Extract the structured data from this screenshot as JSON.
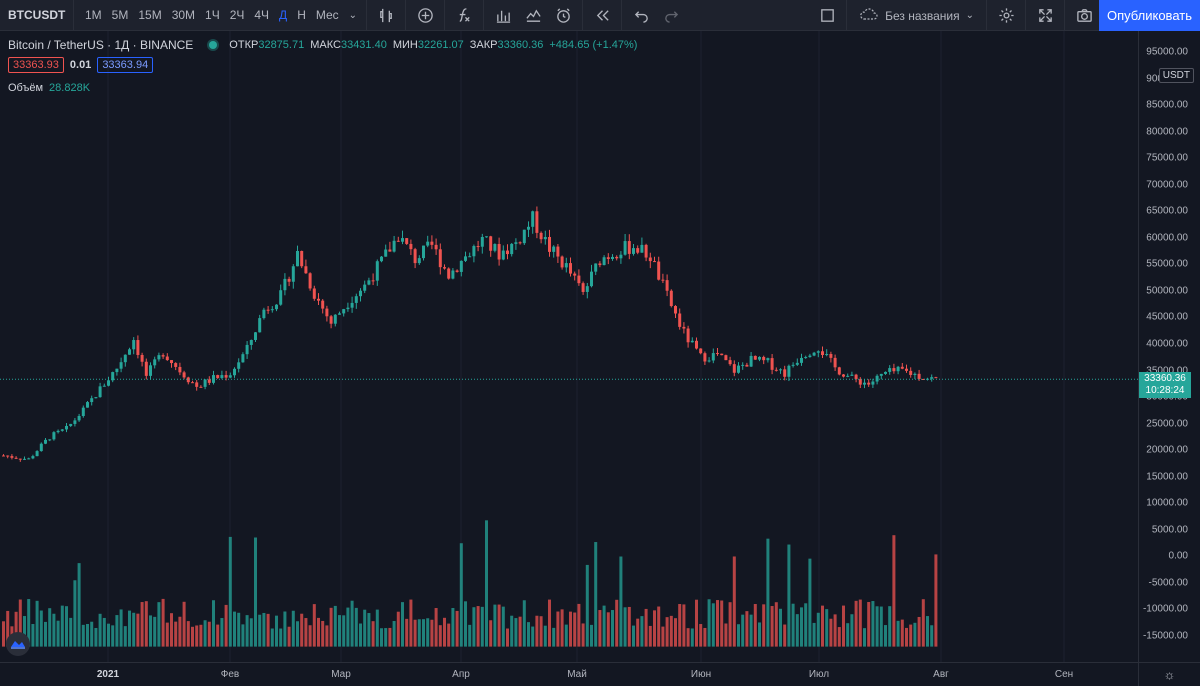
{
  "toolbar": {
    "symbol": "BTCUSDT",
    "timeframes": [
      {
        "label": "1М",
        "active": false
      },
      {
        "label": "5М",
        "active": false
      },
      {
        "label": "15М",
        "active": false
      },
      {
        "label": "30М",
        "active": false
      },
      {
        "label": "1Ч",
        "active": false
      },
      {
        "label": "2Ч",
        "active": false
      },
      {
        "label": "4Ч",
        "active": false
      },
      {
        "label": "Д",
        "active": true
      },
      {
        "label": "Н",
        "active": false
      },
      {
        "label": "Мес",
        "active": false
      }
    ],
    "layout_name": "Без названия",
    "publish_label": "Опубликовать"
  },
  "legend": {
    "title": "Bitcoin / TetherUS · 1Д · BINANCE",
    "open_label": "ОТКР",
    "open": "32875.71",
    "high_label": "МАКС",
    "high": "33431.40",
    "low_label": "МИН",
    "low": "32261.07",
    "close_label": "ЗАКР",
    "close": "33360.36",
    "change": "+484.65 (+1.47%)",
    "sell_price": "33363.93",
    "spread": "0.01",
    "buy_price": "33363.94",
    "volume_label": "Объём",
    "volume_value": "28.828K"
  },
  "price_axis": {
    "currency": "USDT",
    "ticks": [
      "95000.00",
      "90000.00",
      "85000.00",
      "80000.00",
      "75000.00",
      "70000.00",
      "65000.00",
      "60000.00",
      "55000.00",
      "50000.00",
      "45000.00",
      "40000.00",
      "35000.00",
      "30000.00",
      "25000.00",
      "20000.00",
      "15000.00",
      "10000.00",
      "5000.00",
      "0.00",
      "-5000.00",
      "-10000.00",
      "-15000.00"
    ],
    "last_price": "33360.36",
    "countdown": "10:28:24"
  },
  "time_axis": {
    "ticks": [
      {
        "label": "2021",
        "bold": true
      },
      {
        "label": "Фев",
        "bold": false
      },
      {
        "label": "Мар",
        "bold": false
      },
      {
        "label": "Апр",
        "bold": false
      },
      {
        "label": "Май",
        "bold": false
      },
      {
        "label": "Июн",
        "bold": false
      },
      {
        "label": "Июл",
        "bold": false
      },
      {
        "label": "Авг",
        "bold": false
      },
      {
        "label": "Сен",
        "bold": false
      }
    ]
  },
  "colors": {
    "up": "#26a69a",
    "down": "#ef5350",
    "background": "#131722",
    "accent": "#2962ff"
  },
  "chart_data": {
    "type": "candlestick",
    "title": "Bitcoin / TetherUS · 1Д · BINANCE",
    "x_range": [
      "2020-12-22",
      "2021-07-11"
    ],
    "ylim": [
      -17000,
      97000
    ],
    "close_series": [
      {
        "date": "2020-12-22",
        "close": 19000
      },
      {
        "date": "2020-12-28",
        "close": 18300
      },
      {
        "date": "2021-01-02",
        "close": 22500
      },
      {
        "date": "2021-01-06",
        "close": 24000
      },
      {
        "date": "2021-01-10",
        "close": 27500
      },
      {
        "date": "2021-01-14",
        "close": 31500
      },
      {
        "date": "2021-01-18",
        "close": 35500
      },
      {
        "date": "2021-01-22",
        "close": 41000
      },
      {
        "date": "2021-01-25",
        "close": 34000
      },
      {
        "date": "2021-01-29",
        "close": 38500
      },
      {
        "date": "2021-02-02",
        "close": 35000
      },
      {
        "date": "2021-02-06",
        "close": 32000
      },
      {
        "date": "2021-02-10",
        "close": 33500
      },
      {
        "date": "2021-02-14",
        "close": 34500
      },
      {
        "date": "2021-02-18",
        "close": 39000
      },
      {
        "date": "2021-02-22",
        "close": 46500
      },
      {
        "date": "2021-02-26",
        "close": 49000
      },
      {
        "date": "2021-03-02",
        "close": 57000
      },
      {
        "date": "2021-03-06",
        "close": 49500
      },
      {
        "date": "2021-03-10",
        "close": 44000
      },
      {
        "date": "2021-03-14",
        "close": 48000
      },
      {
        "date": "2021-03-18",
        "close": 51000
      },
      {
        "date": "2021-03-22",
        "close": 55500
      },
      {
        "date": "2021-03-26",
        "close": 60500
      },
      {
        "date": "2021-03-30",
        "close": 56000
      },
      {
        "date": "2021-04-03",
        "close": 58500
      },
      {
        "date": "2021-04-07",
        "close": 53000
      },
      {
        "date": "2021-04-11",
        "close": 56500
      },
      {
        "date": "2021-04-15",
        "close": 59500
      },
      {
        "date": "2021-04-19",
        "close": 57000
      },
      {
        "date": "2021-04-23",
        "close": 59000
      },
      {
        "date": "2021-04-27",
        "close": 63500
      },
      {
        "date": "2021-05-01",
        "close": 58000
      },
      {
        "date": "2021-05-05",
        "close": 54500
      },
      {
        "date": "2021-05-09",
        "close": 49500
      },
      {
        "date": "2021-05-13",
        "close": 56000
      },
      {
        "date": "2021-05-17",
        "close": 57500
      },
      {
        "date": "2021-05-21",
        "close": 58500
      },
      {
        "date": "2021-05-25",
        "close": 56500
      },
      {
        "date": "2021-05-29",
        "close": 49000
      },
      {
        "date": "2021-06-02",
        "close": 42000
      },
      {
        "date": "2021-06-06",
        "close": 37500
      },
      {
        "date": "2021-06-10",
        "close": 38000
      },
      {
        "date": "2021-06-14",
        "close": 35000
      },
      {
        "date": "2021-06-18",
        "close": 37000
      },
      {
        "date": "2021-06-22",
        "close": 36500
      },
      {
        "date": "2021-06-26",
        "close": 34500
      },
      {
        "date": "2021-06-30",
        "close": 38000
      },
      {
        "date": "2021-07-04",
        "close": 39500
      },
      {
        "date": "2021-07-08",
        "close": 35500
      },
      {
        "date": "2021-07-12",
        "close": 33500
      },
      {
        "date": "2021-07-16",
        "close": 32500
      },
      {
        "date": "2021-07-20",
        "close": 34500
      },
      {
        "date": "2021-07-24",
        "close": 35000
      },
      {
        "date": "2021-07-28",
        "close": 34000
      },
      {
        "date": "2021-08-01",
        "close": 33360
      }
    ]
  }
}
